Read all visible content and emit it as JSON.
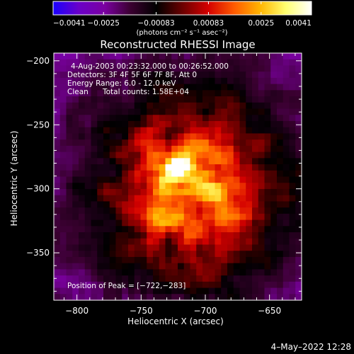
{
  "chart_data": {
    "type": "heatmap",
    "title": "Reconstructed RHESSI Image",
    "xlabel": "Heliocentric X (arcsec)",
    "ylabel": "Heliocentric Y (arcsec)",
    "xlim": [
      -818,
      -625
    ],
    "ylim": [
      -387,
      -194
    ],
    "x_ticks": [
      -800,
      -750,
      -700,
      -650
    ],
    "y_ticks": [
      -200,
      -250,
      -300,
      -350
    ],
    "x_tick_labels": [
      "−800",
      "−750",
      "−700",
      "−650"
    ],
    "y_tick_labels": [
      "−200",
      "−250",
      "−300",
      "−350"
    ],
    "colorbar": {
      "min": -0.0041,
      "max": 0.0041,
      "ticks": [
        -0.0041,
        -0.0025,
        -0.00083,
        0.00083,
        0.0025,
        0.0041
      ],
      "tick_labels": [
        "−0.0041",
        "−0.0025",
        "−0.00083",
        "0.00083",
        "0.0025",
        "0.0041"
      ],
      "units_text": "(photons cm⁻² s⁻¹ asec⁻²)",
      "stops": [
        "#1a00ff",
        "#6a00c8",
        "#7a00a0",
        "#3a0030",
        "#000000",
        "#6a0000",
        "#d40000",
        "#ff5a00",
        "#ffb400",
        "#ffff70",
        "#ffffff"
      ]
    },
    "annotations": {
      "time_range": "4-Aug-2003 00:23:32.000 to 00:26:52.000",
      "detectors": "Detectors: 3F 4F 5F 6F 7F 8F, Att 0",
      "energy_range": "Energy Range: 6.0 - 12.0 keV",
      "clean_label": "Clean",
      "total_counts": "Total counts: 1.58E+04",
      "peak_position": "Position of Peak = [−722,−283]"
    },
    "peak": {
      "x": -722,
      "y": -283
    },
    "secondary_source": {
      "x": -690,
      "y": -303
    },
    "timestamp": "4–May–2022 12:28"
  }
}
